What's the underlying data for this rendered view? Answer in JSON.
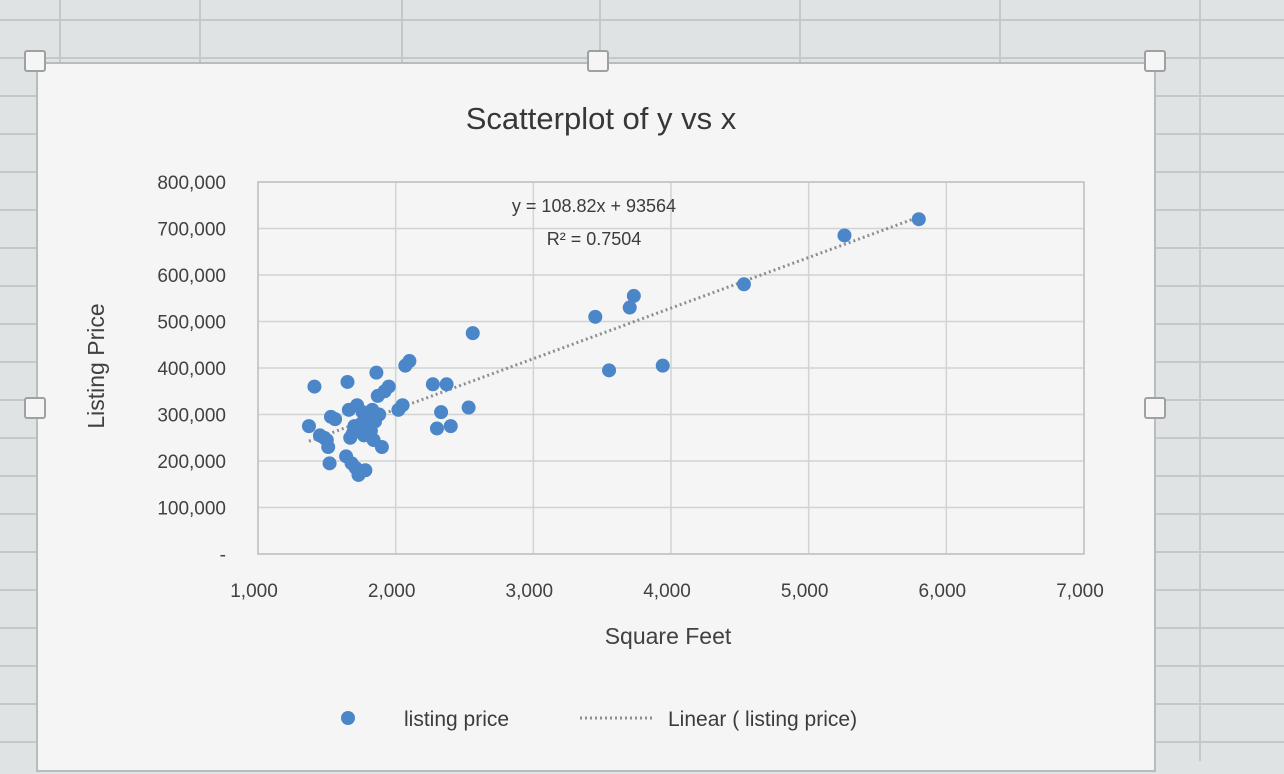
{
  "colors": {
    "marker": "#4a86c8",
    "trendline": "#8a8f94",
    "gridline": "#d2d4d4",
    "plot_border": "#bfc2c3",
    "chart_background": "#f4f5f4",
    "sheet_background": "#dfe3e4",
    "sheet_gridline": "#c4c8c9"
  },
  "chart_data": {
    "type": "scatter",
    "title": "Scatterplot of y vs x",
    "xlabel": "Square Feet",
    "ylabel": "Listing Price",
    "xlim": [
      1000,
      7000
    ],
    "ylim": [
      0,
      800000
    ],
    "x_ticks": [
      1000,
      2000,
      3000,
      4000,
      5000,
      6000,
      7000
    ],
    "x_tick_labels": [
      "1,000",
      "2,000",
      "3,000",
      "4,000",
      "5,000",
      "6,000",
      "7,000"
    ],
    "y_ticks": [
      0,
      100000,
      200000,
      300000,
      400000,
      500000,
      600000,
      700000,
      800000
    ],
    "y_tick_labels": [
      "-",
      "100,000",
      "200,000",
      "300,000",
      "400,000",
      "500,000",
      "600,000",
      "700,000",
      "800,000"
    ],
    "grid": true,
    "legend_position": "bottom",
    "series": [
      {
        "name": "listing price",
        "marker": "circle",
        "points": [
          [
            1370,
            275000
          ],
          [
            1410,
            360000
          ],
          [
            1450,
            255000
          ],
          [
            1480,
            250000
          ],
          [
            1500,
            245000
          ],
          [
            1510,
            230000
          ],
          [
            1520,
            195000
          ],
          [
            1530,
            295000
          ],
          [
            1560,
            290000
          ],
          [
            1640,
            210000
          ],
          [
            1650,
            370000
          ],
          [
            1660,
            310000
          ],
          [
            1670,
            250000
          ],
          [
            1680,
            195000
          ],
          [
            1690,
            260000
          ],
          [
            1700,
            275000
          ],
          [
            1710,
            185000
          ],
          [
            1720,
            320000
          ],
          [
            1730,
            170000
          ],
          [
            1740,
            265000
          ],
          [
            1750,
            280000
          ],
          [
            1760,
            305000
          ],
          [
            1770,
            255000
          ],
          [
            1780,
            180000
          ],
          [
            1790,
            290000
          ],
          [
            1800,
            275000
          ],
          [
            1810,
            300000
          ],
          [
            1820,
            265000
          ],
          [
            1830,
            310000
          ],
          [
            1840,
            245000
          ],
          [
            1850,
            285000
          ],
          [
            1860,
            390000
          ],
          [
            1870,
            340000
          ],
          [
            1880,
            300000
          ],
          [
            1900,
            230000
          ],
          [
            1920,
            350000
          ],
          [
            1950,
            360000
          ],
          [
            2020,
            310000
          ],
          [
            2050,
            320000
          ],
          [
            2070,
            405000
          ],
          [
            2100,
            415000
          ],
          [
            2270,
            365000
          ],
          [
            2300,
            270000
          ],
          [
            2330,
            305000
          ],
          [
            2370,
            365000
          ],
          [
            2400,
            275000
          ],
          [
            2530,
            315000
          ],
          [
            2560,
            475000
          ],
          [
            3450,
            510000
          ],
          [
            3550,
            395000
          ],
          [
            3700,
            530000
          ],
          [
            3730,
            555000
          ],
          [
            3940,
            405000
          ],
          [
            4530,
            580000
          ],
          [
            5260,
            685000
          ],
          [
            5800,
            720000
          ]
        ]
      }
    ],
    "trendline": {
      "name": "Linear ( listing price)",
      "type": "linear",
      "slope": 108.82,
      "intercept": 93564,
      "x_range": [
        1370,
        5800
      ],
      "equation_label": "y = 108.82x + 93564",
      "r_squared_label": "R² = 0.7504"
    }
  }
}
